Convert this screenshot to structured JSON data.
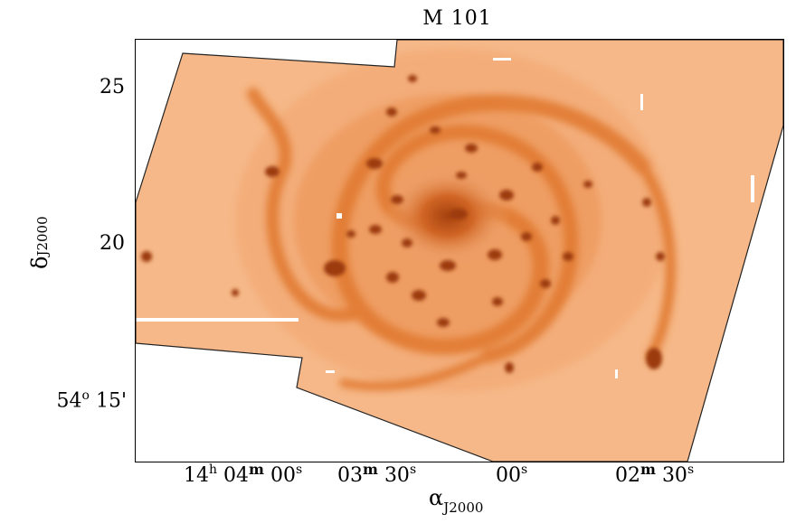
{
  "title": "M 101",
  "ylabel": {
    "symbol": "δ",
    "sub": "J2000"
  },
  "xlabel": {
    "symbol": "α",
    "sub": "J2000"
  },
  "yticks": [
    {
      "value": "25"
    },
    {
      "value": "20"
    },
    {
      "value": "54",
      "sup": "o",
      "min": "15'"
    }
  ],
  "xticks": [
    {
      "h": "14",
      "hsup": "h",
      "m": "04",
      "msup": "m",
      "s": "00",
      "ssup": "s"
    },
    {
      "m": "03",
      "msup": "m",
      "s": "30",
      "ssup": "s"
    },
    {
      "s": "00",
      "ssup": "s"
    },
    {
      "m": "02",
      "msup": "m",
      "s": "30",
      "ssup": "s"
    }
  ],
  "colors": {
    "background": "#f4b07f",
    "arm": "#e07a33",
    "knot": "#9c3a10",
    "core": "#b64e18"
  }
}
